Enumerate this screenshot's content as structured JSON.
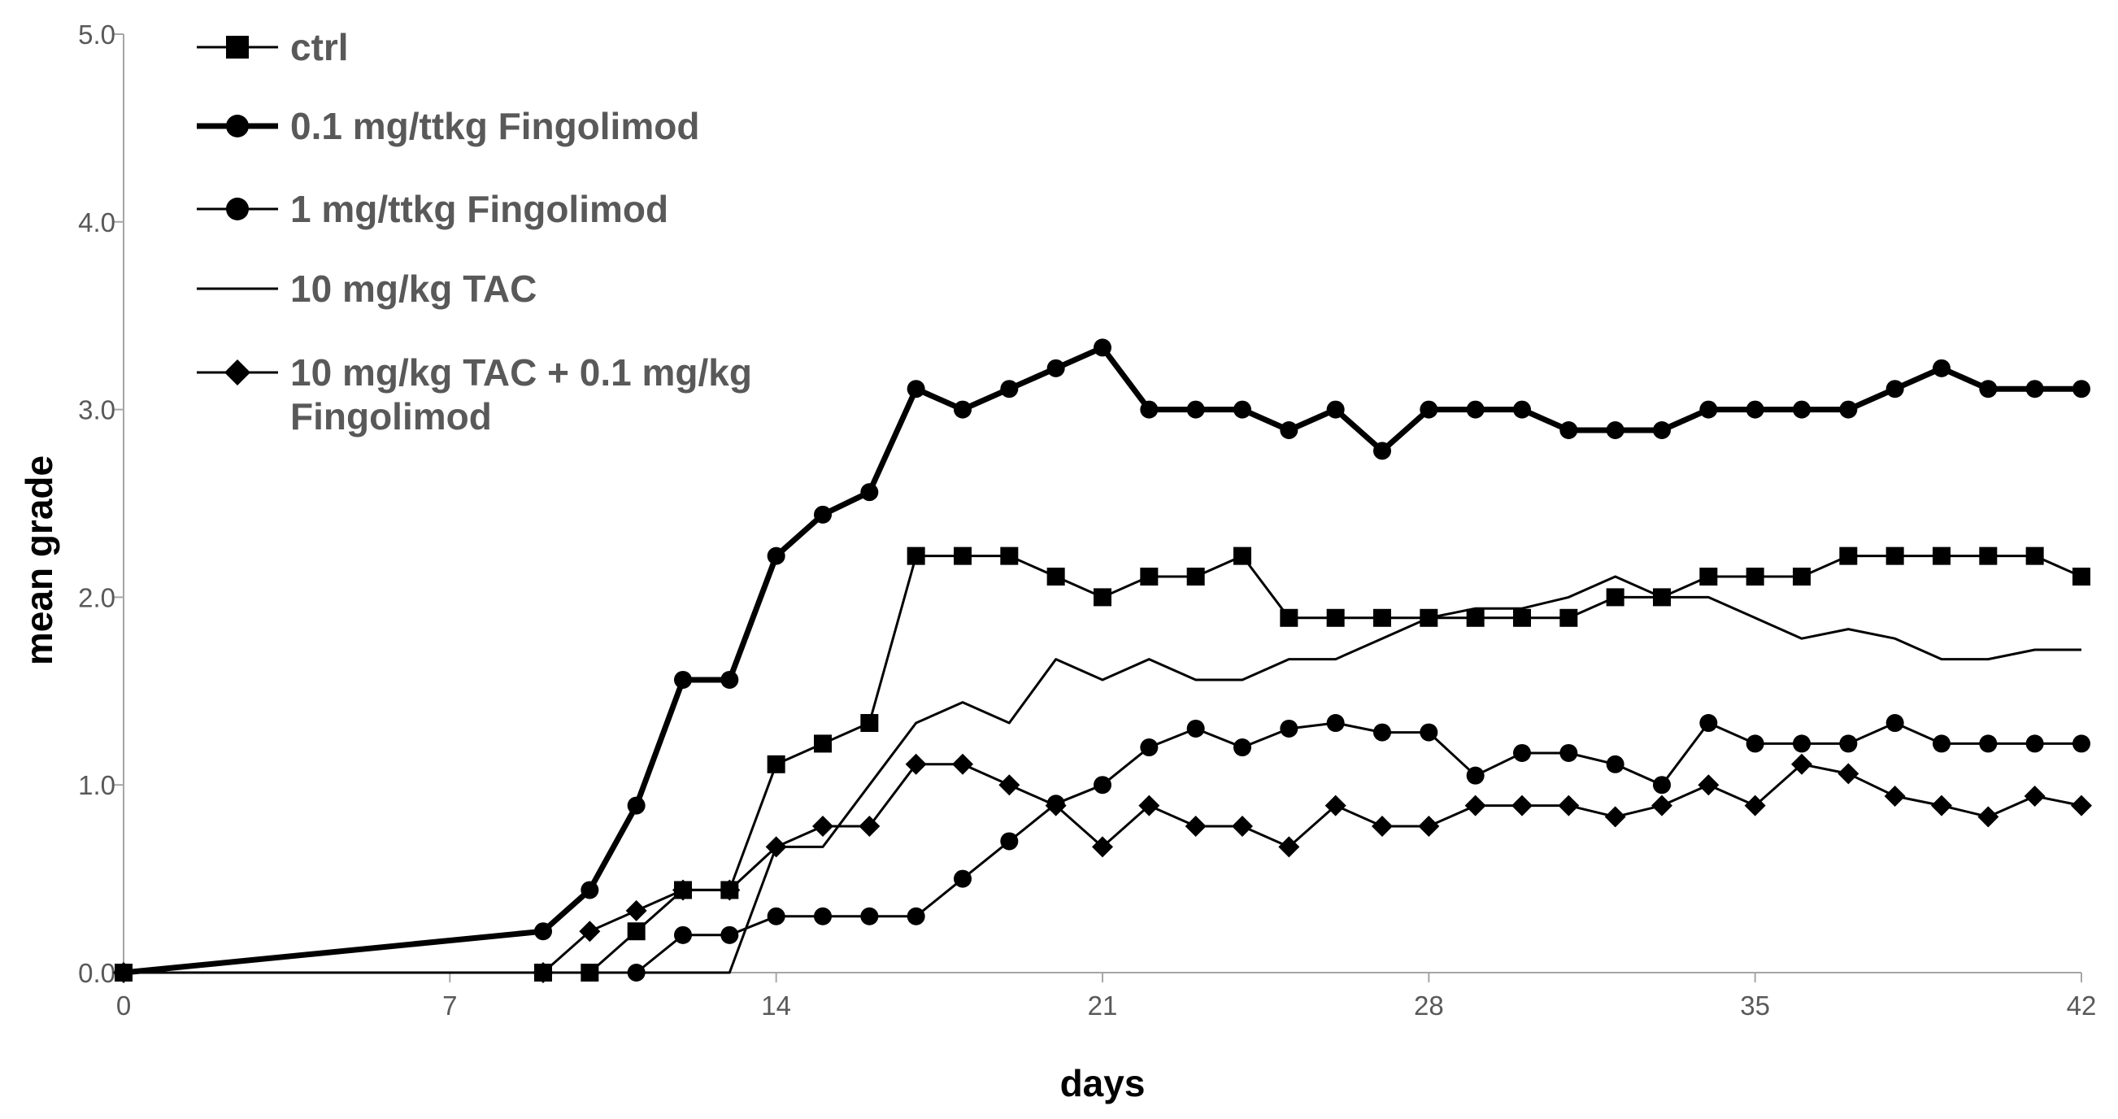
{
  "chart_data": {
    "type": "line",
    "title": "",
    "xlabel": "days",
    "ylabel": "mean grade",
    "xlim": [
      0,
      42
    ],
    "ylim": [
      0,
      5
    ],
    "xticks": [
      0,
      7,
      14,
      21,
      28,
      35,
      42
    ],
    "xtick_labels": [
      "0",
      "7",
      "14",
      "21",
      "28",
      "35",
      "42"
    ],
    "yticks": [
      0,
      1,
      2,
      3,
      4,
      5
    ],
    "ytick_labels": [
      "0.0",
      "1.0",
      "2.0",
      "3.0",
      "4.0",
      "5.0"
    ],
    "grid": false,
    "legend_position": "top-left",
    "series": [
      {
        "name": "ctrl",
        "marker": "square",
        "line_style": "thin",
        "x": [
          0,
          9,
          10,
          11,
          12,
          13,
          14,
          15,
          16,
          17,
          18,
          19,
          20,
          21,
          22,
          23,
          24,
          25,
          26,
          27,
          28,
          29,
          30,
          31,
          32,
          33,
          34,
          35,
          36,
          37,
          38,
          39,
          40,
          41,
          42
        ],
        "y": [
          0,
          0,
          0,
          0.22,
          0.44,
          0.44,
          1.11,
          1.22,
          1.33,
          2.22,
          2.22,
          2.22,
          2.11,
          2.0,
          2.11,
          2.11,
          2.22,
          1.89,
          1.89,
          1.89,
          1.89,
          1.89,
          1.89,
          1.89,
          2.0,
          2.0,
          2.11,
          2.11,
          2.11,
          2.22,
          2.22,
          2.22,
          2.22,
          2.22,
          2.11
        ]
      },
      {
        "name": "0.1 mg/ttkg Fingolimod",
        "marker": "circle",
        "line_style": "thick",
        "x": [
          0,
          9,
          10,
          11,
          12,
          13,
          14,
          15,
          16,
          17,
          18,
          19,
          20,
          21,
          22,
          23,
          24,
          25,
          26,
          27,
          28,
          29,
          30,
          31,
          32,
          33,
          34,
          35,
          36,
          37,
          38,
          39,
          40,
          41,
          42
        ],
        "y": [
          0,
          0.22,
          0.44,
          0.89,
          1.56,
          1.56,
          2.22,
          2.44,
          2.56,
          3.11,
          3.0,
          3.11,
          3.22,
          3.33,
          3.0,
          3.0,
          3.0,
          2.89,
          3.0,
          2.78,
          3.0,
          3.0,
          3.0,
          2.89,
          2.89,
          2.89,
          3.0,
          3.0,
          3.0,
          3.0,
          3.11,
          3.22,
          3.11,
          3.11,
          3.11
        ]
      },
      {
        "name": "1 mg/ttkg Fingolimod",
        "marker": "circle",
        "line_style": "thin",
        "x": [
          0,
          9,
          10,
          11,
          12,
          13,
          14,
          15,
          16,
          17,
          18,
          19,
          20,
          21,
          22,
          23,
          24,
          25,
          26,
          27,
          28,
          29,
          30,
          31,
          32,
          33,
          34,
          35,
          36,
          37,
          38,
          39,
          40,
          41,
          42
        ],
        "y": [
          0,
          0,
          0,
          0,
          0.2,
          0.2,
          0.3,
          0.3,
          0.3,
          0.3,
          0.5,
          0.7,
          0.9,
          1.0,
          1.2,
          1.3,
          1.2,
          1.3,
          1.33,
          1.28,
          1.28,
          1.05,
          1.17,
          1.17,
          1.11,
          1.0,
          1.33,
          1.22,
          1.22,
          1.22,
          1.33,
          1.22,
          1.22,
          1.22,
          1.22
        ]
      },
      {
        "name": "10 mg/kg TAC",
        "marker": "none",
        "line_style": "thin",
        "x": [
          0,
          9,
          10,
          11,
          12,
          13,
          14,
          15,
          16,
          17,
          18,
          19,
          20,
          21,
          22,
          23,
          24,
          25,
          26,
          27,
          28,
          29,
          30,
          31,
          32,
          33,
          34,
          35,
          36,
          37,
          38,
          39,
          40,
          41,
          42
        ],
        "y": [
          0,
          0,
          0,
          0,
          0,
          0,
          0.67,
          0.67,
          1.0,
          1.33,
          1.44,
          1.33,
          1.67,
          1.56,
          1.67,
          1.56,
          1.56,
          1.67,
          1.67,
          1.78,
          1.89,
          1.94,
          1.94,
          2.0,
          2.11,
          2.0,
          2.0,
          1.89,
          1.78,
          1.83,
          1.78,
          1.67,
          1.67,
          1.72,
          1.72
        ]
      },
      {
        "name": "10 mg/kg TAC + 0.1 mg/kg Fingolimod",
        "legend_lines": [
          "10 mg/kg TAC + 0.1 mg/kg",
          "Fingolimod"
        ],
        "marker": "diamond",
        "line_style": "thin",
        "x": [
          0,
          9,
          10,
          11,
          12,
          13,
          14,
          15,
          16,
          17,
          18,
          19,
          20,
          21,
          22,
          23,
          24,
          25,
          26,
          27,
          28,
          29,
          30,
          31,
          32,
          33,
          34,
          35,
          36,
          37,
          38,
          39,
          40,
          41,
          42
        ],
        "y": [
          0,
          0,
          0.22,
          0.33,
          0.44,
          0.44,
          0.67,
          0.78,
          0.78,
          1.11,
          1.11,
          1.0,
          0.89,
          0.67,
          0.89,
          0.78,
          0.78,
          0.67,
          0.89,
          0.78,
          0.78,
          0.89,
          0.89,
          0.89,
          0.83,
          0.89,
          1.0,
          0.89,
          1.11,
          1.06,
          0.94,
          0.89,
          0.83,
          0.94,
          0.89
        ]
      }
    ]
  }
}
